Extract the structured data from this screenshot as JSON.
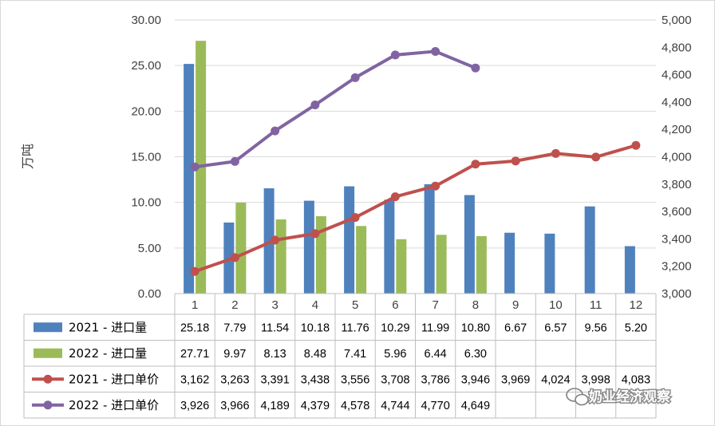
{
  "chart_data": {
    "type": "bar+line",
    "categories": [
      "1",
      "2",
      "3",
      "4",
      "5",
      "6",
      "7",
      "8",
      "9",
      "10",
      "11",
      "12"
    ],
    "ylabel": "万吨",
    "y_left": {
      "min": 0,
      "max": 30,
      "step": 5,
      "tick_labels": [
        "0.00",
        "5.00",
        "10.00",
        "15.00",
        "20.00",
        "25.00",
        "30.00"
      ]
    },
    "y_right": {
      "min": 3000,
      "max": 5000,
      "step": 200,
      "tick_labels": [
        "3,000",
        "3,200",
        "3,400",
        "3,600",
        "3,800",
        "4,000",
        "4,200",
        "4,400",
        "4,600",
        "4,800",
        "5,000"
      ]
    },
    "series": [
      {
        "name": "2021 - 进口量",
        "kind": "bar",
        "axis": "left",
        "color": "#4f81bd",
        "values": [
          25.18,
          7.79,
          11.54,
          10.18,
          11.76,
          10.29,
          11.99,
          10.8,
          6.67,
          6.57,
          9.56,
          5.2
        ],
        "labels": [
          "25.18",
          "7.79",
          "11.54",
          "10.18",
          "11.76",
          "10.29",
          "11.99",
          "10.80",
          "6.67",
          "6.57",
          "9.56",
          "5.20"
        ]
      },
      {
        "name": "2022 - 进口量",
        "kind": "bar",
        "axis": "left",
        "color": "#9bbb59",
        "values": [
          27.71,
          9.97,
          8.13,
          8.48,
          7.41,
          5.96,
          6.44,
          6.3,
          null,
          null,
          null,
          null
        ],
        "labels": [
          "27.71",
          "9.97",
          "8.13",
          "8.48",
          "7.41",
          "5.96",
          "6.44",
          "6.30",
          "",
          "",
          "",
          ""
        ]
      },
      {
        "name": "2021 - 进口单价",
        "kind": "line",
        "axis": "right",
        "color": "#c0504d",
        "values": [
          3162,
          3263,
          3391,
          3438,
          3556,
          3708,
          3786,
          3946,
          3969,
          4024,
          3998,
          4083
        ],
        "labels": [
          "3,162",
          "3,263",
          "3,391",
          "3,438",
          "3,556",
          "3,708",
          "3,786",
          "3,946",
          "3,969",
          "4,024",
          "3,998",
          "4,083"
        ]
      },
      {
        "name": "2022 - 进口单价",
        "kind": "line",
        "axis": "right",
        "color": "#8064a2",
        "values": [
          3926,
          3966,
          4189,
          4379,
          4578,
          4744,
          4770,
          4649,
          null,
          null,
          null,
          null
        ],
        "labels": [
          "3,926",
          "3,966",
          "4,189",
          "4,379",
          "4,578",
          "4,744",
          "4,770",
          "4,649",
          "",
          "",
          "",
          ""
        ]
      }
    ],
    "legend_placement": "data-table-below",
    "watermark": "奶业经济观察"
  }
}
